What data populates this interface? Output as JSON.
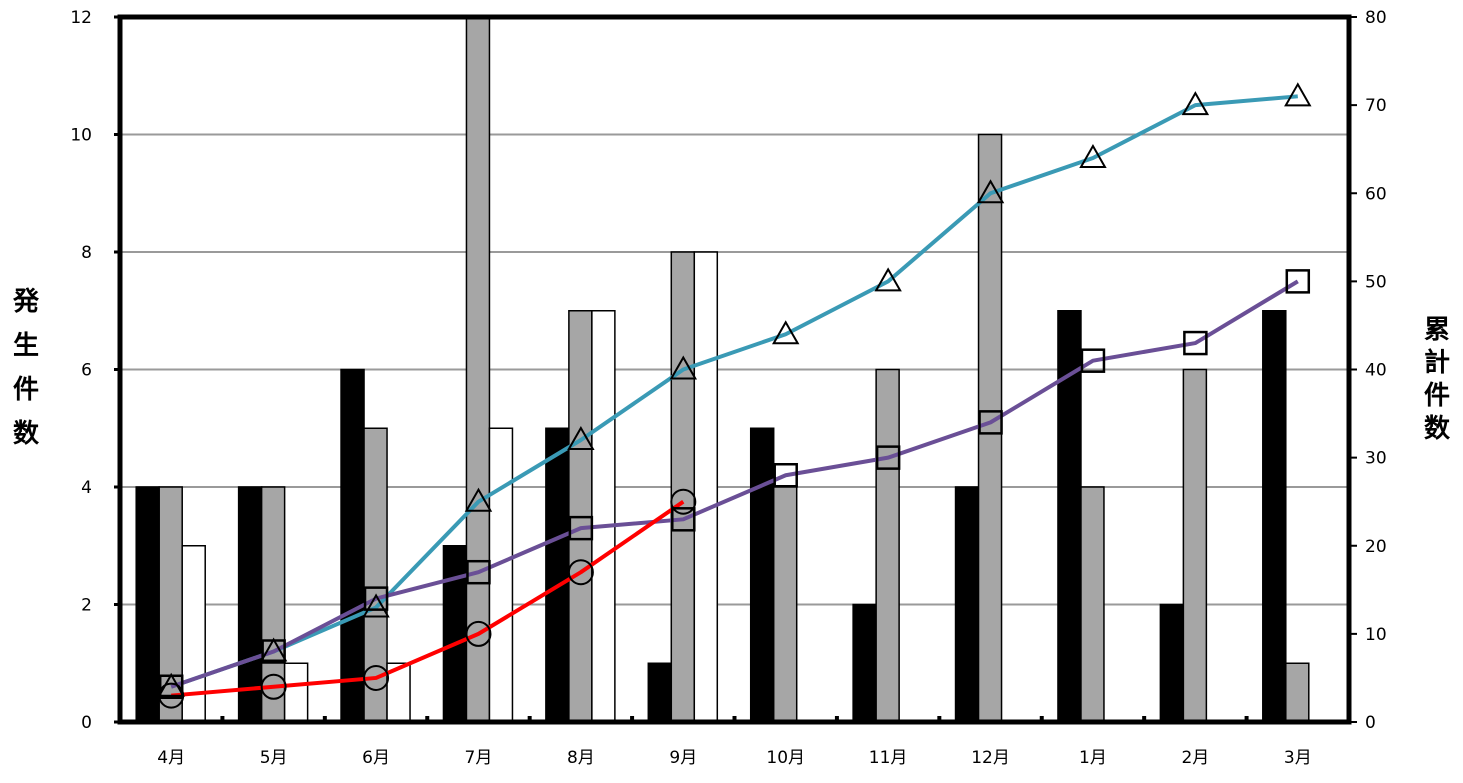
{
  "chart_data": {
    "type": "bar",
    "categories": [
      "4月",
      "5月",
      "6月",
      "7月",
      "8月",
      "9月",
      "10月",
      "11月",
      "12月",
      "1月",
      "2月",
      "3月"
    ],
    "ylabel": "発生件数",
    "y2label": "累計件数",
    "ylim": [
      0,
      12
    ],
    "y2lim": [
      0,
      80
    ],
    "yticks": [
      "0",
      "2",
      "4",
      "6",
      "8",
      "10",
      "12"
    ],
    "y2ticks": [
      "0",
      "10",
      "20",
      "30",
      "40",
      "50",
      "60",
      "70",
      "80"
    ],
    "grid": true,
    "legend": "none",
    "bar_series": [
      {
        "color": "#000000",
        "values": [
          4,
          4,
          6,
          3,
          5,
          1,
          5,
          2,
          4,
          7,
          2,
          7
        ]
      },
      {
        "color": "#a6a6a6",
        "values": [
          4,
          4,
          5,
          12,
          7,
          8,
          4,
          6,
          10,
          4,
          6,
          1
        ]
      },
      {
        "color": "#ffffff",
        "values": [
          3,
          1,
          1,
          5,
          7,
          8,
          null,
          null,
          null,
          null,
          null,
          null
        ]
      }
    ],
    "line_series": [
      {
        "color": "#3a9ab5",
        "marker": "triangle",
        "axis": "right",
        "values": [
          4,
          8,
          13,
          25,
          32,
          40,
          44,
          50,
          60,
          64,
          70,
          71
        ]
      },
      {
        "color": "#6a4f96",
        "marker": "square",
        "axis": "right",
        "values": [
          4,
          8,
          14,
          17,
          22,
          23,
          28,
          30,
          34,
          41,
          43,
          50
        ]
      },
      {
        "color": "#ff0000",
        "marker": "circle",
        "axis": "right",
        "values": [
          3,
          4,
          5,
          10,
          17,
          25
        ]
      }
    ]
  }
}
